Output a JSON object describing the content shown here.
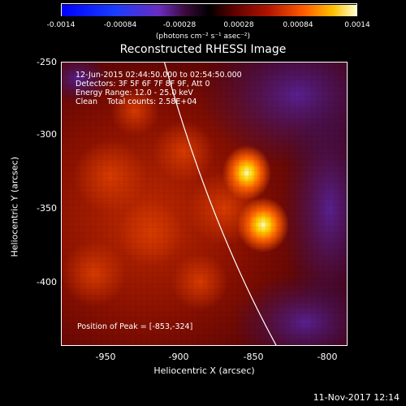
{
  "colorbar": {
    "ticks": [
      "-0.0014",
      "-0.00084",
      "-0.00028",
      "0.00028",
      "0.00084",
      "0.0014"
    ],
    "unit": "(photons cm⁻² s⁻¹ asec⁻²)"
  },
  "title": "Reconstructed RHESSI Image",
  "annotations": {
    "time_range": "12-Jun-2015 02:44:50.000 to 02:54:50.000",
    "detectors": "Detectors: 3F 5F 6F 7F 8F 9F, Att 0",
    "energy": "Energy Range: 12.0 - 25.0 keV",
    "method": "Clean    Total counts: 2.58E+04",
    "peak": "Position of Peak = [-853,-324]"
  },
  "axes": {
    "x_label": "Heliocentric X (arcsec)",
    "y_label": "Heliocentric Y (arcsec)",
    "x_ticks": [
      "-950",
      "-900",
      "-850",
      "-800"
    ],
    "y_ticks": [
      "-250",
      "-300",
      "-350",
      "-400"
    ]
  },
  "timestamp": "11-Nov-2017 12:14",
  "colors": {
    "background": "#000000",
    "limb": "#ffffff"
  }
}
